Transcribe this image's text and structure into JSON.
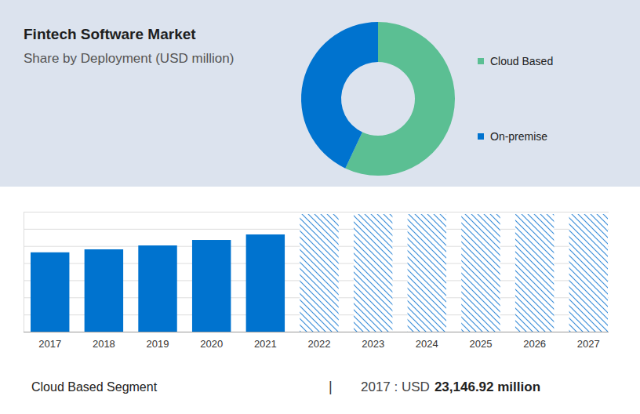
{
  "chart_data": [
    {
      "type": "donut",
      "title": "Fintech Software Market",
      "subtitle": "Share by Deployment (USD million)",
      "categories": [
        "Cloud Based",
        "On-premise"
      ],
      "values": [
        57,
        43
      ],
      "colors": [
        "#5bbf93",
        "#0073cf"
      ],
      "legend": "right"
    },
    {
      "type": "bar",
      "categories": [
        "2017",
        "2018",
        "2019",
        "2020",
        "2021",
        "2022",
        "2023",
        "2024",
        "2025",
        "2026",
        "2027"
      ],
      "series": [
        {
          "color": "#0073cf",
          "values": [
            23146.92,
            24020,
            25160,
            26760,
            28370,
            null,
            null,
            null,
            null,
            null,
            null
          ]
        },
        {
          "color": "#3d8fd9",
          "line_style": "hatched",
          "values": [
            null,
            null,
            null,
            null,
            null,
            34300,
            34300,
            34300,
            34300,
            34300,
            34300
          ]
        }
      ],
      "ylim": [
        0,
        35000
      ],
      "yticks": [
        0,
        5000,
        10000,
        15000,
        20000,
        25000,
        30000,
        35000
      ],
      "grid": true,
      "tick_labels": "x",
      "annotations": [
        "Cloud Based Segment",
        "|",
        "2017 : USD",
        "23,146.92 million"
      ]
    }
  ]
}
